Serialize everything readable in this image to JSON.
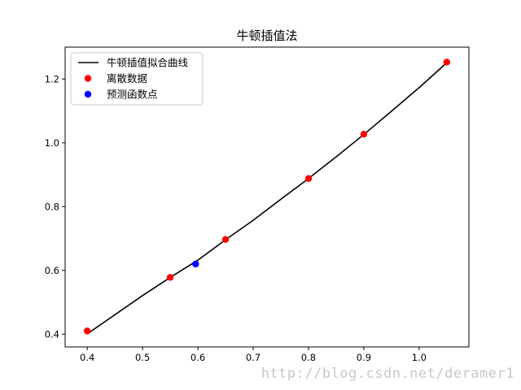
{
  "chart_data": {
    "type": "line",
    "title": "牛顿插值法",
    "xlabel": "",
    "ylabel": "",
    "xlim": [
      0.36,
      1.09
    ],
    "ylim": [
      0.36,
      1.3
    ],
    "xticks": [
      0.4,
      0.5,
      0.6,
      0.7,
      0.8,
      0.9,
      1.0
    ],
    "xtick_labels": [
      "0.4",
      "0.5",
      "0.6",
      "0.7",
      "0.8",
      "0.9",
      "1.0"
    ],
    "yticks": [
      0.4,
      0.6,
      0.8,
      1.0,
      1.2
    ],
    "ytick_labels": [
      "0.4",
      "0.6",
      "0.8",
      "1.0",
      "1.2"
    ],
    "grid": false,
    "legend_position": "top-left",
    "series": [
      {
        "name": "牛顿插值拟合曲线",
        "kind": "line",
        "color": "#000000",
        "x": [
          0.4,
          0.5,
          0.55,
          0.6,
          0.65,
          0.7,
          0.75,
          0.8,
          0.85,
          0.9,
          0.95,
          1.0,
          1.05
        ],
        "y": [
          0.401,
          0.521,
          0.578,
          0.632,
          0.696,
          0.757,
          0.823,
          0.888,
          0.956,
          1.026,
          1.099,
          1.173,
          1.251
        ]
      },
      {
        "name": "离散数据",
        "kind": "scatter",
        "color": "#ff0000",
        "x": [
          0.4,
          0.55,
          0.65,
          0.8,
          0.9,
          1.05
        ],
        "y": [
          0.41,
          0.578,
          0.697,
          0.888,
          1.027,
          1.253
        ]
      },
      {
        "name": "预测函数点",
        "kind": "scatter",
        "color": "#0000ff",
        "x": [
          0.596
        ],
        "y": [
          0.62
        ]
      }
    ]
  },
  "watermark": "http://blog.csdn.net/deramer1"
}
